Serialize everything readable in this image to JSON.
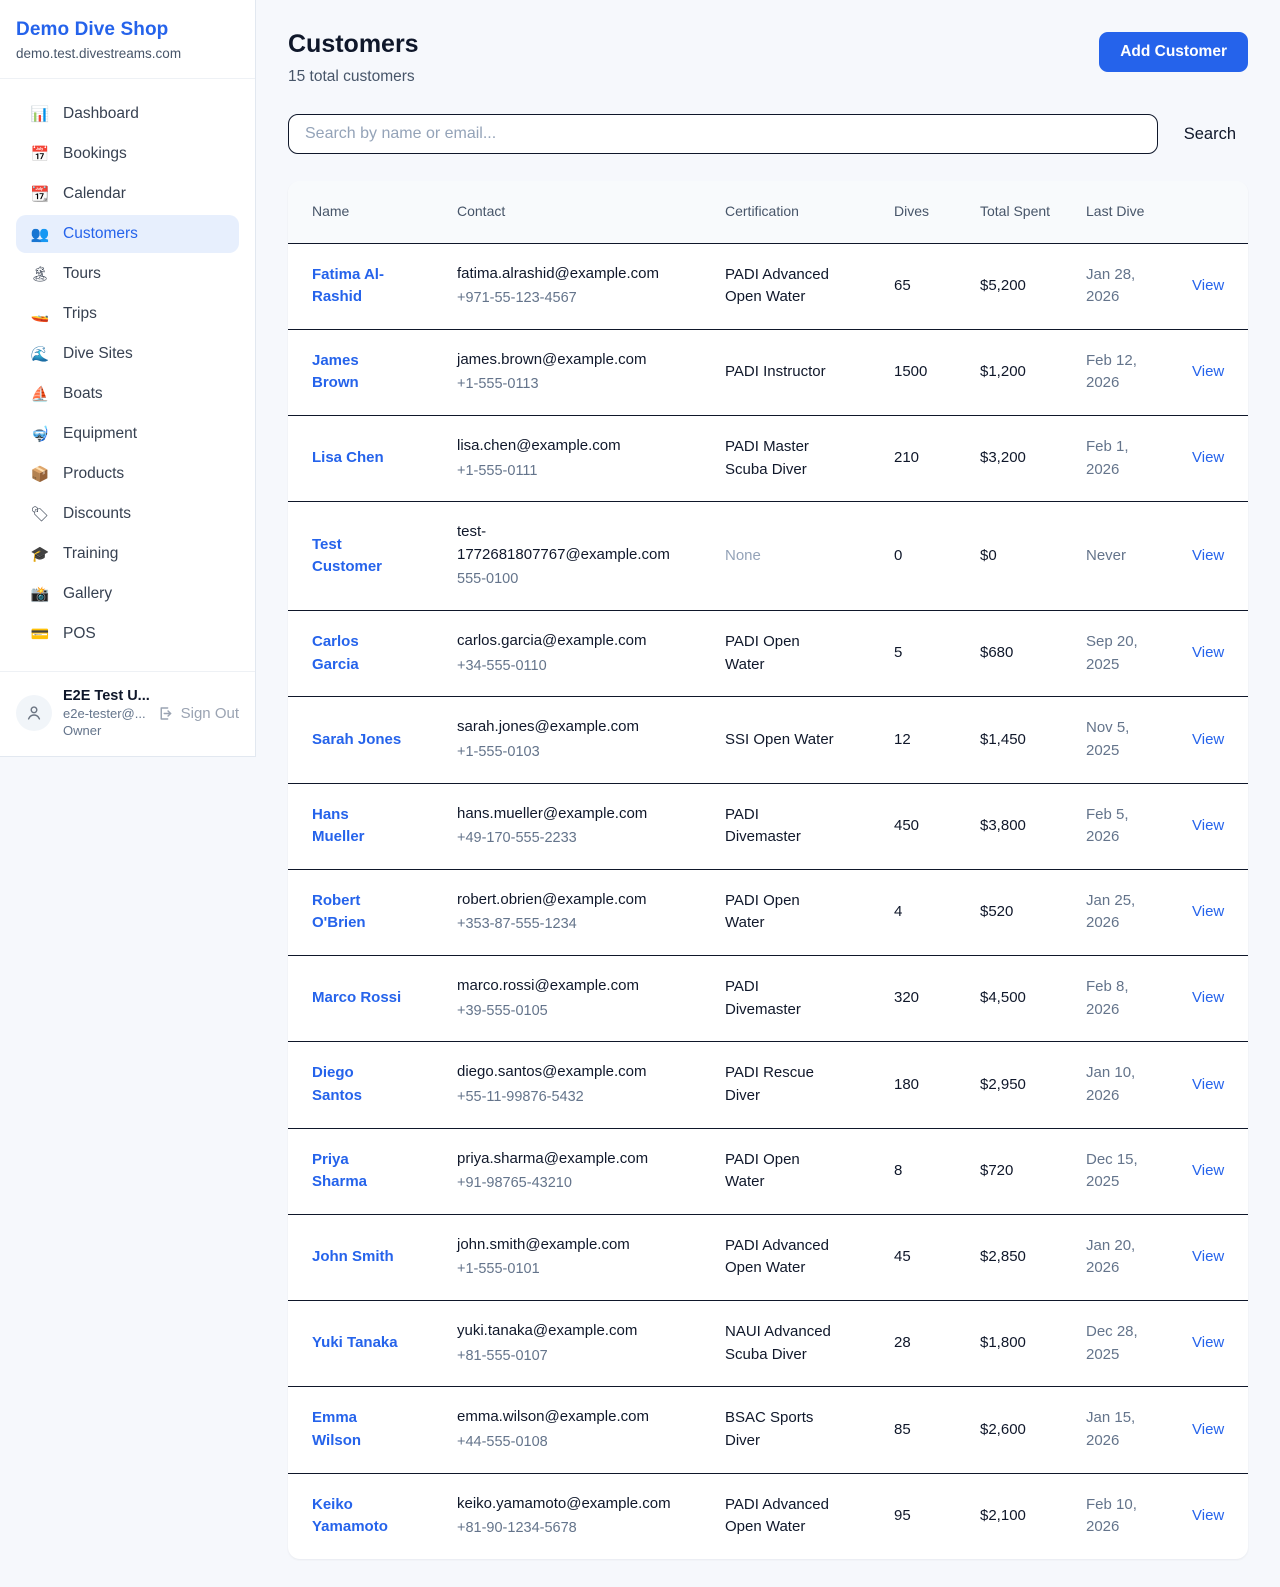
{
  "sidebar": {
    "shop_name": "Demo Dive Shop",
    "domain": "demo.test.divestreams.com",
    "items": [
      {
        "label": "Dashboard",
        "icon": "📊",
        "icon_name": "bar-chart-icon",
        "active": false
      },
      {
        "label": "Bookings",
        "icon": "📅",
        "icon_name": "calendar-icon",
        "active": false
      },
      {
        "label": "Calendar",
        "icon": "📆",
        "icon_name": "tear-off-calendar-icon",
        "active": false
      },
      {
        "label": "Customers",
        "icon": "👥",
        "icon_name": "people-icon",
        "active": true
      },
      {
        "label": "Tours",
        "icon": "🏝",
        "icon_name": "island-icon",
        "active": false
      },
      {
        "label": "Trips",
        "icon": "🚤",
        "icon_name": "speedboat-icon",
        "active": false
      },
      {
        "label": "Dive Sites",
        "icon": "🌊",
        "icon_name": "wave-icon",
        "active": false
      },
      {
        "label": "Boats",
        "icon": "⛵",
        "icon_name": "sailboat-icon",
        "active": false
      },
      {
        "label": "Equipment",
        "icon": "🤿",
        "icon_name": "diving-mask-icon",
        "active": false
      },
      {
        "label": "Products",
        "icon": "📦",
        "icon_name": "package-icon",
        "active": false
      },
      {
        "label": "Discounts",
        "icon": "🏷",
        "icon_name": "tag-icon",
        "active": false
      },
      {
        "label": "Training",
        "icon": "🎓",
        "icon_name": "graduation-cap-icon",
        "active": false
      },
      {
        "label": "Gallery",
        "icon": "📸",
        "icon_name": "camera-icon",
        "active": false
      },
      {
        "label": "POS",
        "icon": "💳",
        "icon_name": "credit-card-icon",
        "active": false
      }
    ],
    "user": {
      "name": "E2E Test U...",
      "email": "e2e-tester@...",
      "role": "Owner",
      "sign_out_label": "Sign Out"
    }
  },
  "header": {
    "title": "Customers",
    "subtitle": "15 total customers",
    "add_button_label": "Add Customer"
  },
  "search": {
    "placeholder": "Search by name or email...",
    "button_label": "Search"
  },
  "table": {
    "columns": [
      "Name",
      "Contact",
      "Certification",
      "Dives",
      "Total Spent",
      "Last Dive",
      ""
    ],
    "rows": [
      {
        "name": "Fatima Al-Rashid",
        "email": "fatima.alrashid@example.com",
        "phone": "+971-55-123-4567",
        "certification": "PADI Advanced Open Water",
        "dives": "65",
        "total_spent": "$5,200",
        "last_dive": "Jan 28, 2026",
        "view_label": "View"
      },
      {
        "name": "James Brown",
        "email": "james.brown@example.com",
        "phone": "+1-555-0113",
        "certification": "PADI Instructor",
        "dives": "1500",
        "total_spent": "$1,200",
        "last_dive": "Feb 12, 2026",
        "view_label": "View"
      },
      {
        "name": "Lisa Chen",
        "email": "lisa.chen@example.com",
        "phone": "+1-555-0111",
        "certification": "PADI Master Scuba Diver",
        "dives": "210",
        "total_spent": "$3,200",
        "last_dive": "Feb 1, 2026",
        "view_label": "View"
      },
      {
        "name": "Test Customer",
        "email": "test-1772681807767@example.com",
        "phone": "555-0100",
        "certification": "None",
        "dives": "0",
        "total_spent": "$0",
        "last_dive": "Never",
        "view_label": "View"
      },
      {
        "name": "Carlos Garcia",
        "email": "carlos.garcia@example.com",
        "phone": "+34-555-0110",
        "certification": "PADI Open Water",
        "dives": "5",
        "total_spent": "$680",
        "last_dive": "Sep 20, 2025",
        "view_label": "View"
      },
      {
        "name": "Sarah Jones",
        "email": "sarah.jones@example.com",
        "phone": "+1-555-0103",
        "certification": "SSI Open Water",
        "dives": "12",
        "total_spent": "$1,450",
        "last_dive": "Nov 5, 2025",
        "view_label": "View"
      },
      {
        "name": "Hans Mueller",
        "email": "hans.mueller@example.com",
        "phone": "+49-170-555-2233",
        "certification": "PADI Divemaster",
        "dives": "450",
        "total_spent": "$3,800",
        "last_dive": "Feb 5, 2026",
        "view_label": "View"
      },
      {
        "name": "Robert O'Brien",
        "email": "robert.obrien@example.com",
        "phone": "+353-87-555-1234",
        "certification": "PADI Open Water",
        "dives": "4",
        "total_spent": "$520",
        "last_dive": "Jan 25, 2026",
        "view_label": "View"
      },
      {
        "name": "Marco Rossi",
        "email": "marco.rossi@example.com",
        "phone": "+39-555-0105",
        "certification": "PADI Divemaster",
        "dives": "320",
        "total_spent": "$4,500",
        "last_dive": "Feb 8, 2026",
        "view_label": "View"
      },
      {
        "name": "Diego Santos",
        "email": "diego.santos@example.com",
        "phone": "+55-11-99876-5432",
        "certification": "PADI Rescue Diver",
        "dives": "180",
        "total_spent": "$2,950",
        "last_dive": "Jan 10, 2026",
        "view_label": "View"
      },
      {
        "name": "Priya Sharma",
        "email": "priya.sharma@example.com",
        "phone": "+91-98765-43210",
        "certification": "PADI Open Water",
        "dives": "8",
        "total_spent": "$720",
        "last_dive": "Dec 15, 2025",
        "view_label": "View"
      },
      {
        "name": "John Smith",
        "email": "john.smith@example.com",
        "phone": "+1-555-0101",
        "certification": "PADI Advanced Open Water",
        "dives": "45",
        "total_spent": "$2,850",
        "last_dive": "Jan 20, 2026",
        "view_label": "View"
      },
      {
        "name": "Yuki Tanaka",
        "email": "yuki.tanaka@example.com",
        "phone": "+81-555-0107",
        "certification": "NAUI Advanced Scuba Diver",
        "dives": "28",
        "total_spent": "$1,800",
        "last_dive": "Dec 28, 2025",
        "view_label": "View"
      },
      {
        "name": "Emma Wilson",
        "email": "emma.wilson@example.com",
        "phone": "+44-555-0108",
        "certification": "BSAC Sports Diver",
        "dives": "85",
        "total_spent": "$2,600",
        "last_dive": "Jan 15, 2026",
        "view_label": "View"
      },
      {
        "name": "Keiko Yamamoto",
        "email": "keiko.yamamoto@example.com",
        "phone": "+81-90-1234-5678",
        "certification": "PADI Advanced Open Water",
        "dives": "95",
        "total_spent": "$2,100",
        "last_dive": "Feb 10, 2026",
        "view_label": "View"
      }
    ]
  },
  "colors": {
    "accent_blue": "#2563eb",
    "active_nav_bg": "#e7effd",
    "text_dark": "#0f172a",
    "text_secondary": "#475569",
    "text_muted": "#94a3b8",
    "row_border": "#0f172a",
    "header_bg": "#f8fafc",
    "page_bg": "#f6f8fc"
  }
}
